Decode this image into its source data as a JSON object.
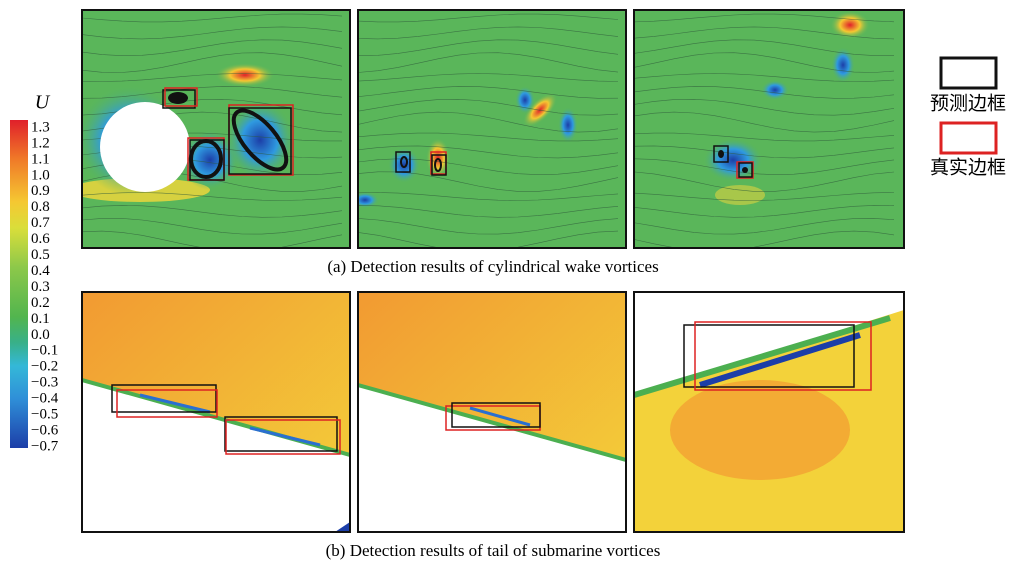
{
  "colorbar": {
    "label": "U",
    "ticks": [
      "1.3",
      "1.2",
      "1.1",
      "1.0",
      "0.9",
      "0.8",
      "0.7",
      "0.6",
      "0.5",
      "0.4",
      "0.3",
      "0.2",
      "0.1",
      "0.0",
      "−0.1",
      "−0.2",
      "−0.3",
      "−0.4",
      "−0.5",
      "−0.6",
      "−0.7"
    ]
  },
  "legend": {
    "predicted": "预测边框",
    "ground_truth": "真实边框"
  },
  "captions": {
    "a": "(a) Detection results of cylindrical wake vortices",
    "b": "(b) Detection results of tail of submarine vortices"
  }
}
